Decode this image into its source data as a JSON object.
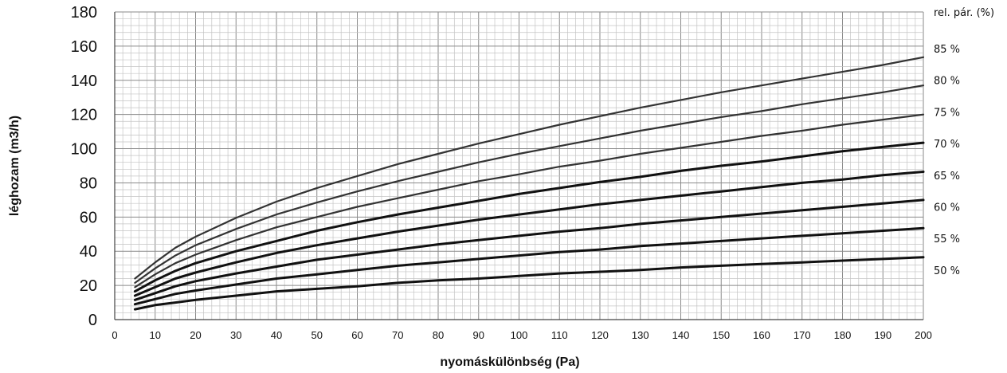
{
  "chart_data": {
    "type": "line",
    "xlabel": "nyomáskülönbség (Pa)",
    "ylabel": "léghozam (m3/h)",
    "xlim": [
      0,
      200
    ],
    "ylim": [
      0,
      180
    ],
    "x_ticks": [
      "0",
      "10",
      "20",
      "30",
      "40",
      "50",
      "60",
      "70",
      "80",
      "90",
      "100",
      "110",
      "120",
      "130",
      "140",
      "150",
      "160",
      "170",
      "180",
      "190",
      "200"
    ],
    "y_ticks": [
      "0",
      "20",
      "40",
      "60",
      "80",
      "100",
      "120",
      "140",
      "160",
      "180"
    ],
    "grid": true,
    "legend_title": "rel. pár. (%)",
    "x": [
      5,
      10,
      15,
      20,
      30,
      40,
      50,
      60,
      70,
      80,
      90,
      100,
      110,
      120,
      130,
      140,
      150,
      160,
      170,
      180,
      190,
      200
    ],
    "series": [
      {
        "name": "85 %",
        "color": "#333333",
        "values": [
          24,
          33.5,
          42,
          48.5,
          59.5,
          69,
          77,
          84,
          91,
          97,
          103,
          108.5,
          114,
          119,
          124,
          128.5,
          133,
          137,
          141,
          145,
          149,
          153.5
        ]
      },
      {
        "name": "80 %",
        "color": "#333333",
        "values": [
          21.5,
          30,
          37.5,
          43.5,
          53,
          61.5,
          68.5,
          75,
          81,
          86.5,
          92,
          97,
          101.5,
          106,
          110.5,
          114.5,
          118.5,
          122,
          126,
          129.5,
          133,
          137
        ]
      },
      {
        "name": "75 %",
        "color": "#333333",
        "values": [
          19,
          26.5,
          33,
          38,
          46.5,
          54,
          60,
          66,
          71,
          76,
          81,
          85,
          89.5,
          93,
          97,
          100.5,
          104,
          107.5,
          110.5,
          114,
          117,
          120
        ]
      },
      {
        "name": "70 %",
        "color": "#111111",
        "values": [
          16.5,
          23,
          28.5,
          33,
          40,
          46,
          52,
          57,
          61.5,
          65.5,
          69.5,
          73.5,
          77,
          80.5,
          83.5,
          87,
          90,
          92.5,
          95.5,
          98.5,
          101,
          103.5
        ]
      },
      {
        "name": "65 %",
        "color": "#111111",
        "values": [
          14,
          19,
          24,
          27.5,
          33.5,
          39,
          43.5,
          47.5,
          51.5,
          55,
          58.5,
          61.5,
          64.5,
          67.5,
          70,
          72.5,
          75,
          77.5,
          80,
          82,
          84.5,
          86.5
        ]
      },
      {
        "name": "60 %",
        "color": "#111111",
        "values": [
          11.5,
          15.5,
          19.5,
          22.5,
          27,
          31,
          35,
          38,
          41,
          44,
          46.5,
          49,
          51.5,
          53.5,
          56,
          58,
          60,
          62,
          64,
          66,
          68,
          70
        ]
      },
      {
        "name": "55 %",
        "color": "#111111",
        "values": [
          9,
          12,
          15,
          17,
          20.5,
          24,
          26.5,
          29,
          31.5,
          33.5,
          35.5,
          37.5,
          39.5,
          41,
          43,
          44.5,
          46,
          47.5,
          49,
          50.5,
          52,
          53.5
        ]
      },
      {
        "name": "50 %",
        "color": "#111111",
        "values": [
          6,
          8.5,
          10,
          11.5,
          14,
          16.5,
          18,
          19.5,
          21.5,
          23,
          24,
          25.5,
          27,
          28,
          29,
          30.5,
          31.5,
          32.5,
          33.5,
          34.5,
          35.5,
          36.5
        ]
      }
    ]
  }
}
